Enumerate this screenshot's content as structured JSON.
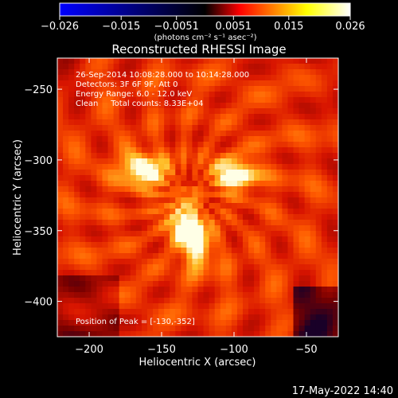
{
  "chart_data": {
    "type": "heatmap",
    "title": "Reconstructed RHESSI Image",
    "xlabel": "Heliocentric X (arcsec)",
    "ylabel": "Heliocentric Y (arcsec)",
    "xlim": [
      -222,
      -28
    ],
    "ylim": [
      -425,
      -228
    ],
    "xticks": [
      -200,
      -150,
      -100,
      -50
    ],
    "yticks": [
      -250,
      -300,
      -350,
      -400
    ],
    "colorbar": {
      "range": [
        -0.026,
        0.026
      ],
      "ticks": [
        -0.026,
        -0.015,
        -0.0051,
        0.0051,
        0.015,
        0.026
      ],
      "tick_labels": [
        "-0.026",
        "-0.015",
        "-0.0051",
        "0.0051",
        "0.015",
        "0.026"
      ],
      "units_label": "(photons cm⁻² s⁻¹ asec⁻²)",
      "colormap": [
        "#0000ff",
        "#000000",
        "#ff0000",
        "#ffff00",
        "#ffffff"
      ]
    },
    "sources": [
      {
        "x": -163,
        "y": -307,
        "peak": 0.86
      },
      {
        "x": -99,
        "y": -310,
        "peak": 0.82
      },
      {
        "x": -130,
        "y": -352,
        "peak": 1.0
      }
    ],
    "info_lines": [
      "26-Sep-2014 10:08:28.000 to 10:14:28.000",
      "Detectors: 3F 6F 9F, Att 0",
      "Energy Range: 6.0 - 12.0 keV",
      "Clean     Total counts: 8.33E+04"
    ],
    "peak_label": "Position of Peak = [-130,-352]"
  },
  "footer": {
    "timestamp": "17-May-2022 14:40"
  },
  "colors": {
    "background": "#000000",
    "text": "#ffffff"
  }
}
